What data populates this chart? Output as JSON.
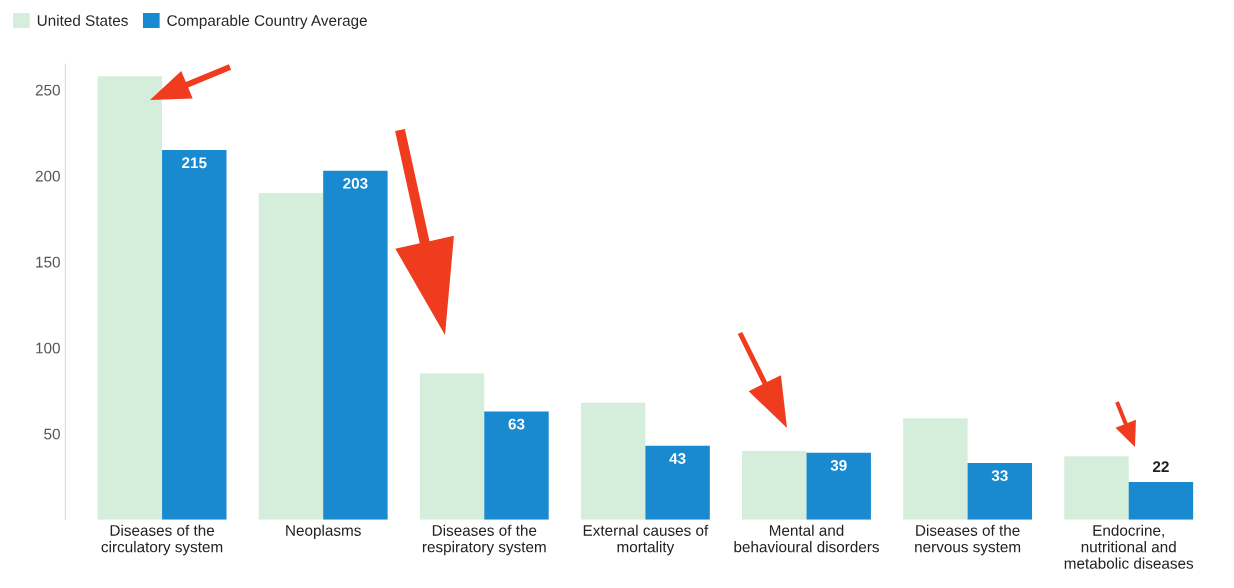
{
  "chart_data": {
    "type": "bar",
    "categories": [
      "Diseases of the circulatory system",
      "Neoplasms",
      "Diseases of the respiratory system",
      "External causes of mortality",
      "Mental and behavioural disorders",
      "Diseases of the nervous system",
      "Endocrine, nutritional and metabolic diseases"
    ],
    "series": [
      {
        "name": "United States",
        "color": "#d4eedb",
        "values": [
          258,
          190,
          85,
          68,
          40,
          59,
          37
        ]
      },
      {
        "name": "Comparable Country Average",
        "color": "#1a8ad0",
        "values": [
          215,
          203,
          63,
          43,
          39,
          33,
          22
        ],
        "value_labels": [
          "215",
          "203",
          "63",
          "43",
          "39",
          "33",
          "22"
        ]
      }
    ],
    "ylim": [
      0,
      265
    ],
    "yticks": [
      50,
      100,
      150,
      200,
      250
    ],
    "grid": false,
    "legend": "top left"
  }
}
